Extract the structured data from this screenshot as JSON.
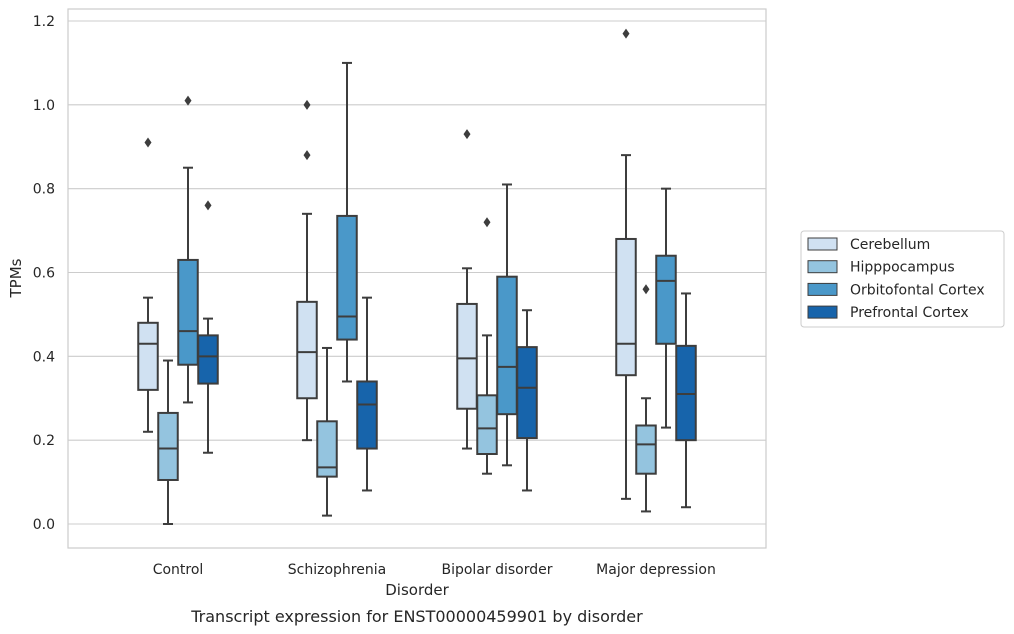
{
  "chart_data": {
    "type": "box",
    "title": "",
    "caption": "Transcript expression for ENST00000459901 by disorder",
    "xlabel": "Disorder",
    "ylabel": "TPMs",
    "ylim": [
      -0.055,
      1.235
    ],
    "yticks": [
      "0.0",
      "0.2",
      "0.4",
      "0.6",
      "0.8",
      "1.0",
      "1.2"
    ],
    "grid": "horizontal",
    "legend_position": "right",
    "categories": [
      "Control",
      "Schizophrenia",
      "Bipolar disorder",
      "Major depression"
    ],
    "series": [
      {
        "name": "Cerebellum",
        "color": "#d0e1f2",
        "boxes": [
          {
            "whisker_low": 0.22,
            "q1": 0.32,
            "median": 0.43,
            "q3": 0.48,
            "whisker_high": 0.54,
            "outliers": [
              0.91
            ]
          },
          {
            "whisker_low": 0.2,
            "q1": 0.3,
            "median": 0.41,
            "q3": 0.53,
            "whisker_high": 0.74,
            "outliers": [
              0.88,
              1.0
            ]
          },
          {
            "whisker_low": 0.18,
            "q1": 0.275,
            "median": 0.395,
            "q3": 0.525,
            "whisker_high": 0.61,
            "outliers": [
              0.93
            ]
          },
          {
            "whisker_low": 0.06,
            "q1": 0.355,
            "median": 0.43,
            "q3": 0.68,
            "whisker_high": 0.88,
            "outliers": [
              1.17
            ]
          }
        ]
      },
      {
        "name": "Hipppocampus",
        "color": "#94c4df",
        "boxes": [
          {
            "whisker_low": 0.0,
            "q1": 0.105,
            "median": 0.18,
            "q3": 0.265,
            "whisker_high": 0.39,
            "outliers": []
          },
          {
            "whisker_low": 0.02,
            "q1": 0.113,
            "median": 0.135,
            "q3": 0.245,
            "whisker_high": 0.42,
            "outliers": []
          },
          {
            "whisker_low": 0.12,
            "q1": 0.167,
            "median": 0.228,
            "q3": 0.307,
            "whisker_high": 0.45,
            "outliers": [
              0.72
            ]
          },
          {
            "whisker_low": 0.03,
            "q1": 0.12,
            "median": 0.19,
            "q3": 0.235,
            "whisker_high": 0.3,
            "outliers": [
              0.56
            ]
          }
        ]
      },
      {
        "name": "Orbitofontal Cortex",
        "color": "#4a98c9",
        "boxes": [
          {
            "whisker_low": 0.29,
            "q1": 0.38,
            "median": 0.46,
            "q3": 0.63,
            "whisker_high": 0.85,
            "outliers": [
              1.01
            ]
          },
          {
            "whisker_low": 0.34,
            "q1": 0.44,
            "median": 0.495,
            "q3": 0.735,
            "whisker_high": 1.1,
            "outliers": []
          },
          {
            "whisker_low": 0.14,
            "q1": 0.262,
            "median": 0.375,
            "q3": 0.59,
            "whisker_high": 0.81,
            "outliers": []
          },
          {
            "whisker_low": 0.23,
            "q1": 0.43,
            "median": 0.58,
            "q3": 0.64,
            "whisker_high": 0.8,
            "outliers": []
          }
        ]
      },
      {
        "name": "Prefrontal Cortex",
        "color": "#1764ab",
        "boxes": [
          {
            "whisker_low": 0.17,
            "q1": 0.335,
            "median": 0.4,
            "q3": 0.45,
            "whisker_high": 0.49,
            "outliers": [
              0.76
            ]
          },
          {
            "whisker_low": 0.08,
            "q1": 0.18,
            "median": 0.285,
            "q3": 0.34,
            "whisker_high": 0.54,
            "outliers": []
          },
          {
            "whisker_low": 0.08,
            "q1": 0.205,
            "median": 0.325,
            "q3": 0.422,
            "whisker_high": 0.51,
            "outliers": []
          },
          {
            "whisker_low": 0.04,
            "q1": 0.2,
            "median": 0.31,
            "q3": 0.425,
            "whisker_high": 0.55,
            "outliers": []
          }
        ]
      }
    ]
  }
}
